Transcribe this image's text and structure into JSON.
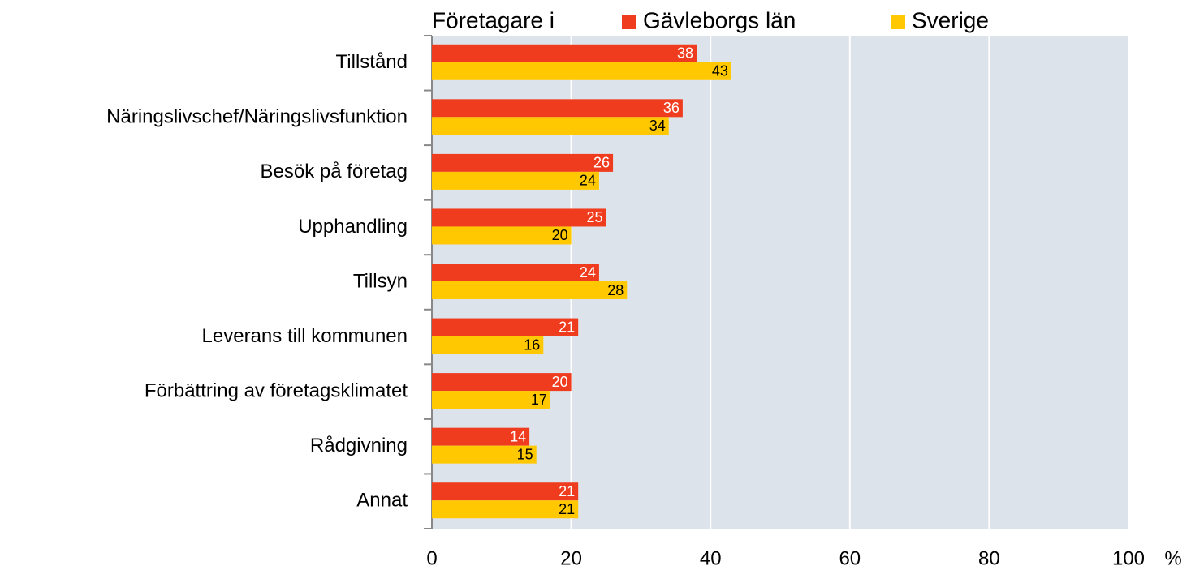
{
  "chart_data": {
    "type": "hbar",
    "legend_title": "Företagare i",
    "categories": [
      "Tillstånd",
      "Näringslivschef/Näringslivsfunktion",
      "Besök på företag",
      "Upphandling",
      "Tillsyn",
      "Leverans till kommunen",
      "Förbättring av företagsklimatet",
      "Rådgivning",
      "Annat"
    ],
    "series": [
      {
        "name": "Gävleborgs län",
        "color": "#f03c1e",
        "label_color": "#ffffff",
        "values": [
          38,
          36,
          26,
          25,
          24,
          21,
          20,
          14,
          21
        ]
      },
      {
        "name": "Sverige",
        "color": "#ffc800",
        "label_color": "#000000",
        "values": [
          43,
          34,
          24,
          20,
          28,
          16,
          17,
          15,
          21
        ]
      }
    ],
    "x_label": "%",
    "xlim": [
      0,
      100
    ],
    "xticks": [
      0,
      20,
      40,
      60,
      80,
      100
    ],
    "grid": true,
    "legend": "top"
  }
}
